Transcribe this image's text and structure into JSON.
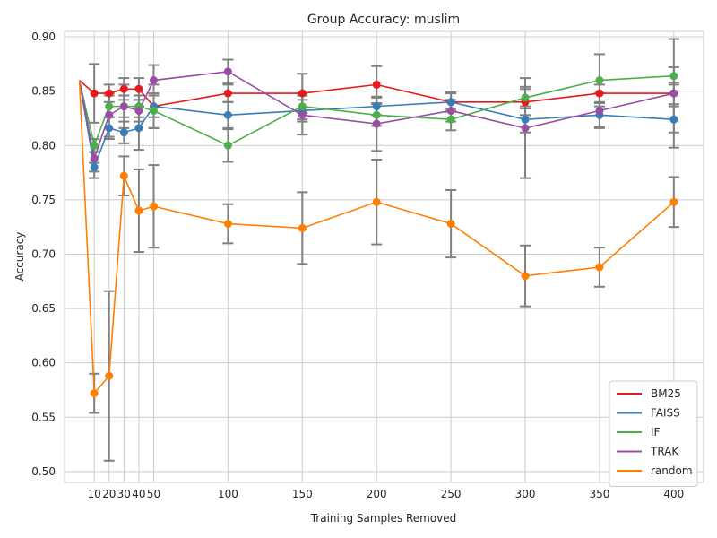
{
  "chart_data": {
    "type": "line",
    "title": "Group Accuracy: muslim",
    "xlabel": "Training Samples Removed",
    "ylabel": "Accuracy",
    "x_ticks": [
      10,
      20,
      30,
      40,
      50,
      100,
      150,
      200,
      250,
      300,
      350,
      400
    ],
    "y_ticks": [
      0.5,
      0.55,
      0.6,
      0.65,
      0.7,
      0.75,
      0.8,
      0.85,
      0.9
    ],
    "xlim": [
      -10,
      420
    ],
    "ylim": [
      0.49,
      0.905
    ],
    "grid": true,
    "legend_position": "bottom-right",
    "error_bar_color": "#808080",
    "series": [
      {
        "name": "BM25",
        "color": "#e41a1c",
        "x": [
          0,
          10,
          20,
          30,
          40,
          50,
          100,
          150,
          200,
          250,
          300,
          350,
          400
        ],
        "y": [
          0.86,
          0.848,
          0.848,
          0.852,
          0.852,
          0.836,
          0.848,
          0.848,
          0.856,
          0.84,
          0.84,
          0.848,
          0.848
        ],
        "err": [
          0,
          0.027,
          0.008,
          0.01,
          0.01,
          0.02,
          0.008,
          0.018,
          0.017,
          0.008,
          0.012,
          0.008,
          0.01
        ]
      },
      {
        "name": "FAISS",
        "color": "#377eb8",
        "x": [
          0,
          10,
          20,
          30,
          40,
          50,
          100,
          150,
          200,
          250,
          300,
          350,
          400
        ],
        "y": [
          0.86,
          0.78,
          0.816,
          0.812,
          0.816,
          0.836,
          0.828,
          0.832,
          0.836,
          0.84,
          0.824,
          0.828,
          0.824
        ],
        "err": [
          0,
          0.004,
          0.01,
          0.01,
          0.02,
          0.01,
          0.012,
          0.01,
          0.008,
          0.009,
          0.012,
          0.011,
          0.012
        ]
      },
      {
        "name": "IF",
        "color": "#4daf4a",
        "x": [
          0,
          10,
          20,
          30,
          40,
          50,
          100,
          150,
          200,
          250,
          300,
          350,
          400
        ],
        "y": [
          0.86,
          0.8,
          0.836,
          0.836,
          0.836,
          0.832,
          0.8,
          0.836,
          0.828,
          0.824,
          0.844,
          0.86,
          0.864
        ],
        "err": [
          0,
          0.006,
          0.01,
          0.01,
          0.01,
          0.016,
          0.015,
          0.012,
          0.01,
          0.01,
          0.01,
          0.024,
          0.008
        ]
      },
      {
        "name": "TRAK",
        "color": "#984ea3",
        "x": [
          0,
          10,
          20,
          30,
          40,
          50,
          100,
          150,
          200,
          250,
          300,
          350,
          400
        ],
        "y": [
          0.86,
          0.788,
          0.828,
          0.836,
          0.832,
          0.86,
          0.868,
          0.828,
          0.82,
          0.832,
          0.816,
          0.832,
          0.848
        ],
        "err": [
          0,
          0.018,
          0.02,
          0.02,
          0.01,
          0.014,
          0.011,
          0.018,
          0.025,
          0.01,
          0.046,
          0.016,
          0.05
        ]
      },
      {
        "name": "random",
        "color": "#ff7f00",
        "x": [
          0,
          10,
          20,
          30,
          40,
          50,
          100,
          150,
          200,
          250,
          300,
          350,
          400
        ],
        "y": [
          0.86,
          0.572,
          0.588,
          0.772,
          0.74,
          0.744,
          0.728,
          0.724,
          0.748,
          0.728,
          0.68,
          0.688,
          0.748
        ],
        "err": [
          0,
          0.018,
          0.078,
          0.018,
          0.038,
          0.038,
          0.018,
          0.033,
          0.039,
          0.031,
          0.028,
          0.018,
          0.023
        ]
      }
    ]
  }
}
